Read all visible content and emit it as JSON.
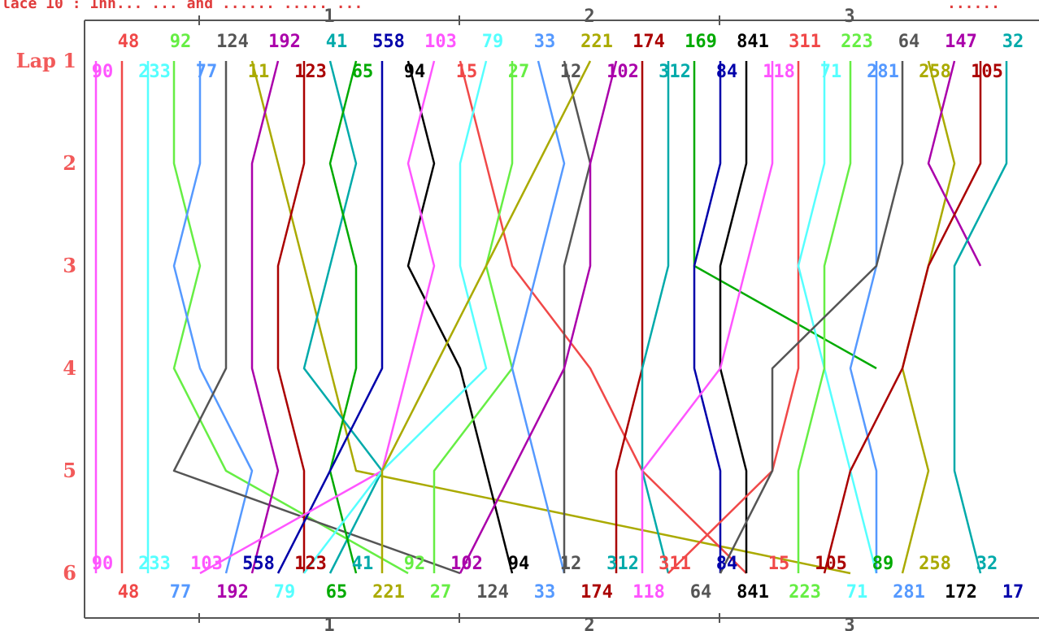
{
  "chart_data": {
    "type": "line",
    "title_fragment": "lace 10 : 1nn... ... and ...... ..... ...",
    "title_right_fragment": "......",
    "y_axis_title": "Lap",
    "laps": [
      1,
      2,
      3,
      4,
      5,
      6
    ],
    "lap_labels": [
      "Lap 1",
      "2",
      "3",
      "4",
      "5",
      "6"
    ],
    "x_ticks": [
      "1",
      "2",
      "3"
    ],
    "grid": false,
    "start_order_top": [
      "48",
      "92",
      "124",
      "192",
      "41",
      "558",
      "103",
      "79",
      "33",
      "221",
      "174",
      "169",
      "841",
      "311",
      "223",
      "64",
      "147",
      "32"
    ],
    "start_order_bottom": [
      "90",
      "233",
      "77",
      "11",
      "123",
      "65",
      "94",
      "15",
      "27",
      "12",
      "102",
      "312",
      "84",
      "118",
      "71",
      "281",
      "258",
      "105"
    ],
    "finish_order_top": [
      "90",
      "233",
      "103",
      "558",
      "123",
      "41",
      "92",
      "102",
      "94",
      "12",
      "312",
      "311",
      "84",
      "15",
      "105",
      "89",
      "258",
      "32"
    ],
    "finish_order_bottom": [
      "48",
      "77",
      "192",
      "79",
      "65",
      "221",
      "27",
      "124",
      "33",
      "174",
      "118",
      "64",
      "841",
      "223",
      "71",
      "281",
      "172",
      "17"
    ],
    "series": [
      {
        "name": "90",
        "color": "#ff55ff",
        "values": [
          1,
          1,
          1,
          1,
          1,
          1
        ]
      },
      {
        "name": "48",
        "color": "#f04848",
        "values": [
          2,
          2,
          2,
          2,
          2,
          2
        ]
      },
      {
        "name": "233",
        "color": "#55ffff",
        "values": [
          3,
          3,
          3,
          3,
          3,
          3
        ]
      },
      {
        "name": "92",
        "color": "#66ee44",
        "values": [
          4,
          4,
          5,
          4,
          6,
          13
        ]
      },
      {
        "name": "77",
        "color": "#5599ff",
        "values": [
          5,
          5,
          4,
          5,
          7,
          6
        ]
      },
      {
        "name": "124",
        "color": "#555555",
        "values": [
          6,
          6,
          6,
          6,
          4,
          15
        ]
      },
      {
        "name": "11",
        "color": "#aaaa00",
        "values": [
          7,
          8,
          9,
          10,
          11,
          30
        ]
      },
      {
        "name": "192",
        "color": "#aa00aa",
        "values": [
          8,
          7,
          7,
          7,
          8,
          7
        ]
      },
      {
        "name": "123",
        "color": "#aa0000",
        "values": [
          9,
          9,
          8,
          8,
          9,
          9
        ]
      },
      {
        "name": "41",
        "color": "#00aaaa",
        "values": [
          10,
          11,
          10,
          9,
          12,
          10
        ]
      },
      {
        "name": "65",
        "color": "#00aa00",
        "values": [
          11,
          10,
          11,
          11,
          10,
          11
        ]
      },
      {
        "name": "558",
        "color": "#0000aa",
        "values": [
          12,
          12,
          12,
          12,
          10,
          8
        ]
      },
      {
        "name": "94",
        "color": "#000000",
        "values": [
          13,
          14,
          13,
          15,
          16,
          17
        ]
      },
      {
        "name": "103",
        "color": "#ff55ff",
        "values": [
          14,
          13,
          14,
          13,
          12,
          5
        ]
      },
      {
        "name": "15",
        "color": "#f04848",
        "values": [
          15,
          16,
          17,
          20,
          22,
          26
        ]
      },
      {
        "name": "79",
        "color": "#55ffff",
        "values": [
          16,
          15,
          15,
          16,
          12,
          9
        ]
      },
      {
        "name": "27",
        "color": "#66ee44",
        "values": [
          17,
          17,
          16,
          17,
          14,
          14
        ]
      },
      {
        "name": "33",
        "color": "#5599ff",
        "values": [
          18,
          19,
          18,
          17,
          18,
          19
        ]
      },
      {
        "name": "12",
        "color": "#555555",
        "values": [
          19,
          20,
          19,
          19,
          19,
          19
        ]
      },
      {
        "name": "221",
        "color": "#aaaa00",
        "values": [
          20,
          18,
          16,
          14,
          12,
          12
        ]
      },
      {
        "name": "102",
        "color": "#aa00aa",
        "values": [
          21,
          20,
          20,
          19,
          17,
          15
        ]
      },
      {
        "name": "174",
        "color": "#aa0000",
        "values": [
          22,
          22,
          22,
          22,
          21,
          21
        ]
      },
      {
        "name": "312",
        "color": "#00aaaa",
        "values": [
          23,
          23,
          23,
          22,
          22,
          23
        ]
      },
      {
        "name": "169",
        "color": "#00aa00",
        "values": [
          24,
          24,
          24,
          31
        ]
      },
      {
        "name": "84",
        "color": "#0000aa",
        "values": [
          25,
          25,
          24,
          24,
          25,
          25
        ]
      },
      {
        "name": "841",
        "color": "#000000",
        "values": [
          26,
          26,
          25,
          25,
          26,
          26
        ]
      },
      {
        "name": "118",
        "color": "#ff55ff",
        "values": [
          27,
          27,
          26,
          25,
          22,
          22
        ]
      },
      {
        "name": "311",
        "color": "#f04848",
        "values": [
          28,
          28,
          28,
          28,
          27,
          23
        ]
      },
      {
        "name": "71",
        "color": "#55ffff",
        "values": [
          29,
          29,
          28,
          29,
          30,
          31
        ]
      },
      {
        "name": "223",
        "color": "#66ee44",
        "values": [
          30,
          30,
          29,
          29,
          28,
          28
        ]
      },
      {
        "name": "281",
        "color": "#5599ff",
        "values": [
          31,
          31,
          31,
          30,
          31,
          31
        ]
      },
      {
        "name": "64",
        "color": "#555555",
        "values": [
          32,
          32,
          31,
          27,
          27,
          25
        ]
      },
      {
        "name": "258",
        "color": "#aaaa00",
        "values": [
          33,
          34,
          33,
          32,
          33,
          32
        ]
      },
      {
        "name": "147",
        "color": "#aa00aa",
        "values": [
          34,
          33,
          35
        ]
      },
      {
        "name": "105",
        "color": "#aa0000",
        "values": [
          35,
          35,
          33,
          32,
          30,
          29
        ]
      },
      {
        "name": "32",
        "color": "#00aaaa",
        "values": [
          36,
          36,
          34,
          34,
          34,
          35
        ]
      }
    ]
  }
}
